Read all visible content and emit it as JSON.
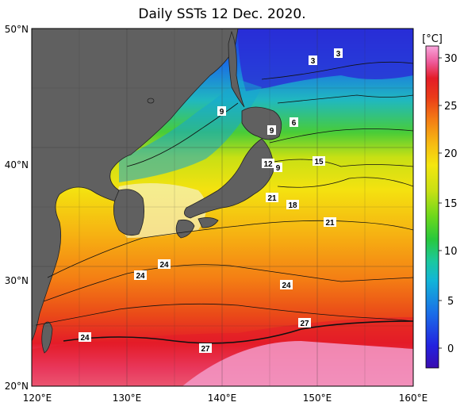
{
  "title": "Daily SSTs 12 Dec. 2020.",
  "map": {
    "lon_range": [
      120,
      160
    ],
    "lat_range": [
      20,
      50
    ],
    "lon_ticks": [
      "120°E",
      "130°E",
      "140°E",
      "150°E",
      "160°E"
    ],
    "lat_ticks": [
      "50°N",
      "40°N",
      "30°N",
      "20°N"
    ],
    "land_color": "#606060",
    "grid": true
  },
  "colorbar": {
    "unit": "[°C]",
    "ticks": [
      "30",
      "25",
      "20",
      "15",
      "10",
      "5",
      "0"
    ],
    "range": [
      -2,
      31
    ],
    "colors": [
      "#3a0cb0",
      "#2222e0",
      "#1a6ee8",
      "#12b4d8",
      "#1bc8a0",
      "#28c83c",
      "#6cd81c",
      "#c8e014",
      "#f4e610",
      "#f6b812",
      "#f47e14",
      "#ea3c18",
      "#e41c28",
      "#ee5a9a",
      "#f8a6dc"
    ]
  },
  "isotherm_labels": [
    "3",
    "3",
    "9",
    "9",
    "6",
    "12",
    "9",
    "15",
    "21",
    "18",
    "21",
    "24",
    "24",
    "24",
    "24",
    "27",
    "27"
  ]
}
